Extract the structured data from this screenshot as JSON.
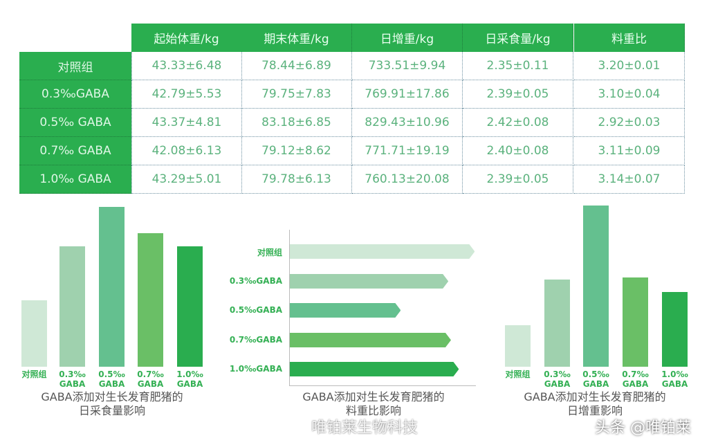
{
  "table": {
    "columns": [
      "起始体重/kg",
      "期末体重/kg",
      "日增重/kg",
      "日采食量/kg",
      "料重比"
    ],
    "rows": [
      {
        "group": "对照组",
        "values": [
          "43.33±6.48",
          "78.44±6.89",
          "733.51±9.94",
          "2.35±0.11",
          "3.20±0.01"
        ]
      },
      {
        "group": "0.3‰GABA",
        "values": [
          "42.79±5.53",
          "79.75±7.83",
          "769.91±17.86",
          "2.39±0.05",
          "3.10±0.04"
        ]
      },
      {
        "group": "0.5‰ GABA",
        "values": [
          "43.37±4.81",
          "83.18±6.85",
          "829.43±10.96",
          "2.42±0.08",
          "2.92±0.03"
        ]
      },
      {
        "group": "0.7‰ GABA",
        "values": [
          "42.08±6.13",
          "79.12±8.62",
          "771.71±19.19",
          "2.40±0.08",
          "3.11±0.09"
        ]
      },
      {
        "group": "1.0‰ GABA",
        "values": [
          "43.29±5.01",
          "79.78±6.13",
          "760.13±20.08",
          "2.39±0.05",
          "3.14±0.07"
        ]
      }
    ],
    "header_color": "#2aae4f"
  },
  "chart_data": [
    {
      "type": "bar",
      "title": "GABA添加对生长发育肥猪的日采食量影响",
      "title_lines": [
        "GABA添加对生长发育肥猪的",
        "日采食量影响"
      ],
      "categories": [
        "对照组",
        "0.3‰ GABA",
        "0.5‰ GABA",
        "0.7‰ GABA",
        "1.0‰ GABA"
      ],
      "category_lines": [
        [
          "对照组",
          ""
        ],
        [
          "0.3‰",
          "GABA"
        ],
        [
          "0.5‰",
          "GABA"
        ],
        [
          "0.7‰",
          "GABA"
        ],
        [
          "1.0‰",
          "GABA"
        ]
      ],
      "values": [
        2.35,
        2.39,
        2.42,
        2.4,
        2.39
      ],
      "axes_visible": false,
      "grid": false,
      "colors": [
        "#cfe8d6",
        "#9fd1ae",
        "#64c08f",
        "#6abf66",
        "#2aad4f"
      ]
    },
    {
      "type": "bar",
      "orientation": "horizontal",
      "title": "GABA添加对生长发育肥猪的料重比影响",
      "title_lines": [
        "GABA添加对生长发育肥猪的",
        "料重比影响"
      ],
      "categories": [
        "对照组",
        "0.3‰GABA",
        "0.5‰GABA",
        "0.7‰GABA",
        "1.0‰GABA"
      ],
      "values": [
        3.2,
        3.1,
        2.92,
        3.11,
        3.14
      ],
      "grid": false,
      "colors": [
        "#cfe8d6",
        "#9fd1ae",
        "#64c08f",
        "#6abf66",
        "#2aad4f"
      ]
    },
    {
      "type": "bar",
      "title": "GABA添加对生长发育肥猪的日增重影响",
      "title_lines": [
        "GABA添加对生长发育肥猪的",
        "日增重影响"
      ],
      "categories": [
        "对照组",
        "0.3‰ GABA",
        "0.5‰ GABA",
        "0.7‰ GABA",
        "1.0‰ GABA"
      ],
      "category_lines": [
        [
          "对照组",
          ""
        ],
        [
          "0.3‰",
          "GABA"
        ],
        [
          "0.5‰",
          "GABA"
        ],
        [
          "0.7‰",
          "GABA"
        ],
        [
          "1.0‰",
          "GABA"
        ]
      ],
      "values": [
        733.51,
        769.91,
        829.43,
        771.71,
        760.13
      ],
      "axes_visible": false,
      "grid": false,
      "colors": [
        "#cfe8d6",
        "#9fd1ae",
        "#64c08f",
        "#6abf66",
        "#2aad4f"
      ]
    }
  ],
  "watermarks": [
    "唯铂莱生物科技",
    "头条 @唯铂莱"
  ]
}
